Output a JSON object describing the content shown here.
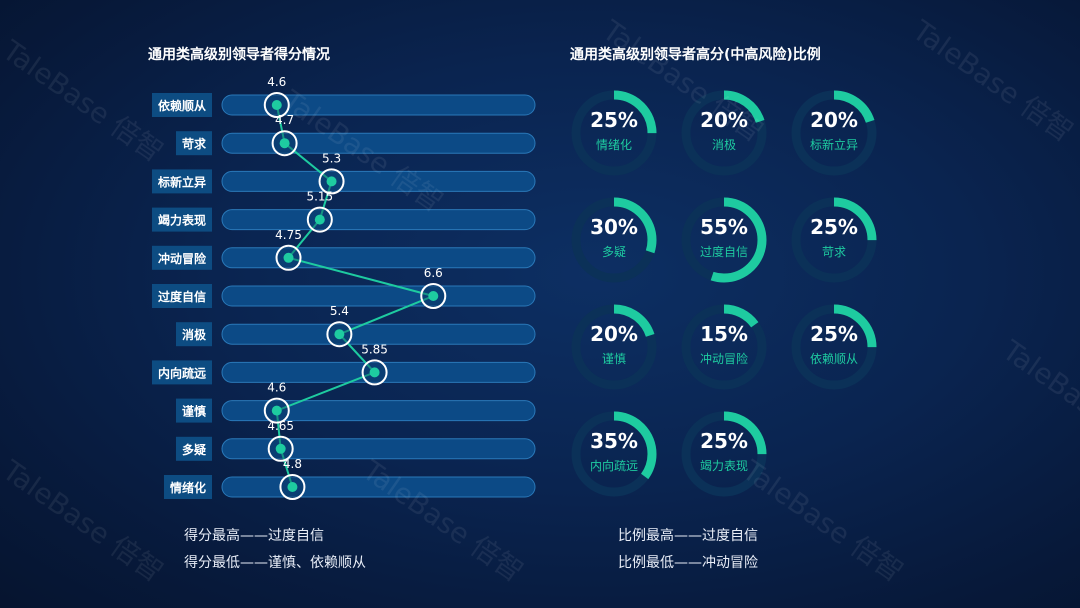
{
  "left_title": "通用类高级别领导者得分情况",
  "right_title": "通用类高级别领导者高分(中高风险)比例",
  "summary": {
    "score_high": "得分最高——过度自信",
    "score_low": "得分最低——谨慎、依赖顺从",
    "ratio_high": "比例最高——过度自信",
    "ratio_low": "比例最低——冲动冒险"
  },
  "watermark": "TaleBase 倍智",
  "colors": {
    "accent": "#1ecba0",
    "bar": "#0c4a86",
    "label_bg": "#0d4c82",
    "ring_bg": "#0b3158"
  },
  "chart_data": [
    {
      "type": "line",
      "orientation": "horizontal",
      "categories": [
        "依赖顺从",
        "苛求",
        "标新立异",
        "竭力表现",
        "冲动冒险",
        "过度自信",
        "消极",
        "内向疏远",
        "谨慎",
        "多疑",
        "情绪化"
      ],
      "values": [
        4.6,
        4.7,
        5.3,
        5.15,
        4.75,
        6.6,
        5.4,
        5.85,
        4.6,
        4.65,
        4.8
      ],
      "value_labels": [
        "4.6",
        "4.7",
        "5.3",
        "5.15",
        "4.75",
        "6.6",
        "5.4",
        "5.85",
        "4.6",
        "4.65",
        "4.8"
      ],
      "xlim": [
        3.9,
        7.9
      ]
    },
    {
      "type": "pie",
      "style": "donut",
      "categories": [
        "情绪化",
        "消极",
        "标新立异",
        "多疑",
        "过度自信",
        "苛求",
        "谨慎",
        "冲动冒险",
        "依赖顺从",
        "内向疏远",
        "竭力表现"
      ],
      "values": [
        25,
        20,
        20,
        30,
        55,
        25,
        20,
        15,
        25,
        35,
        25
      ],
      "value_labels": [
        "25%",
        "20%",
        "20%",
        "30%",
        "55%",
        "25%",
        "20%",
        "15%",
        "25%",
        "35%",
        "25%"
      ]
    }
  ]
}
